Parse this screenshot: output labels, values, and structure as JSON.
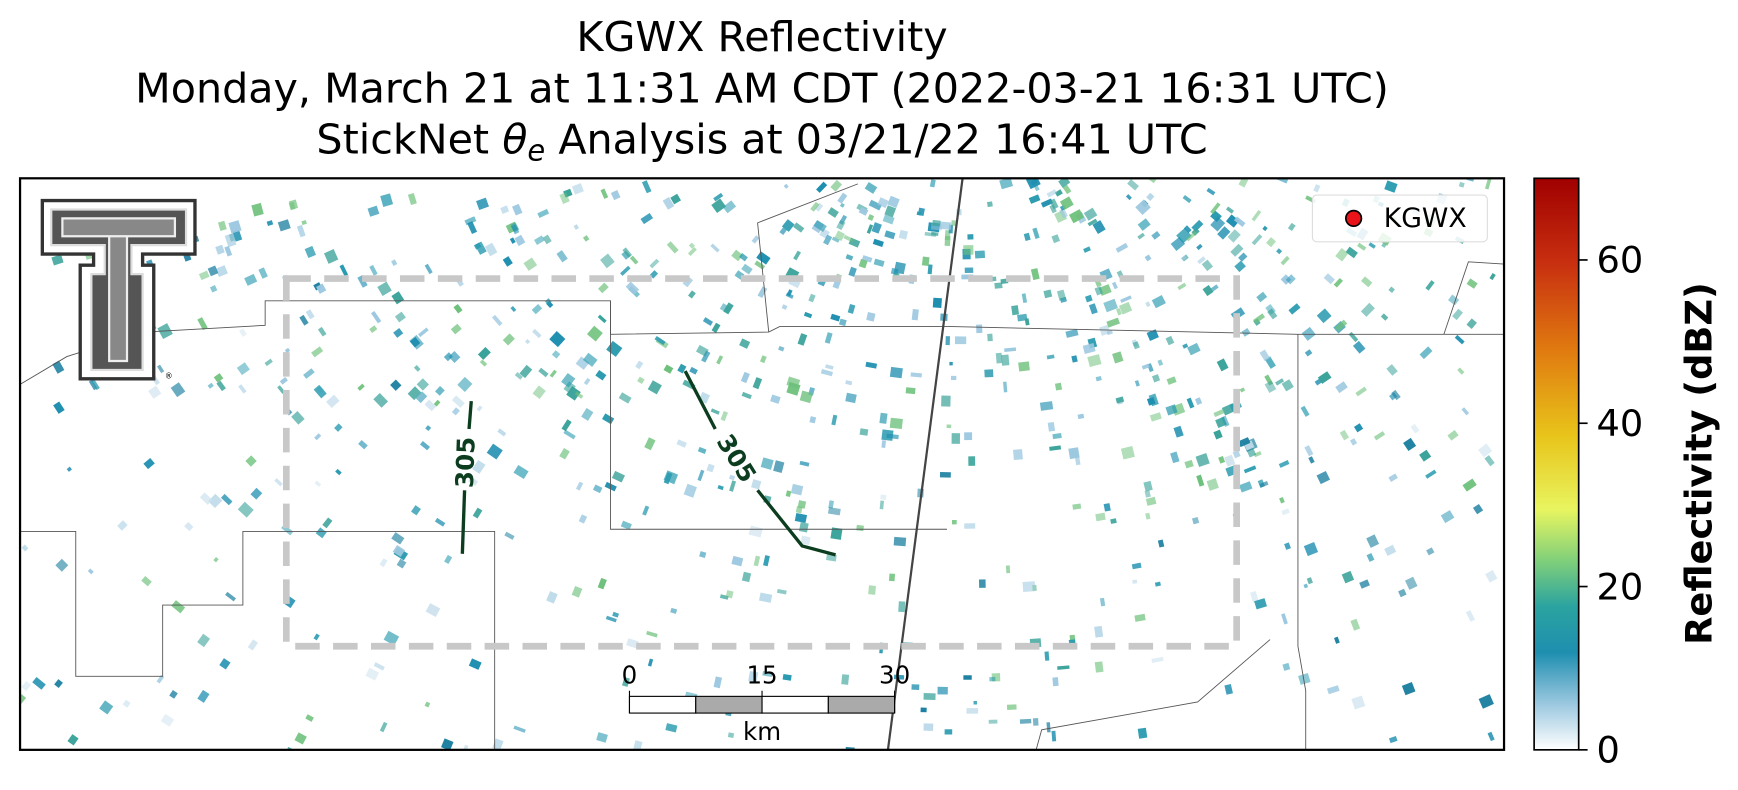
{
  "title_lines": [
    "KGWX Reflectivity",
    "Monday, March 21 at 11:31 AM CDT (2022-03-21 16:31 UTC)"
  ],
  "analysis_line": {
    "before": "StickNet ",
    "symbol": "θ",
    "subscript": "e",
    "after": " Analysis at 03/21/22 16:41 UTC"
  },
  "legend": {
    "label": "KGWX",
    "color": "#e8141a"
  },
  "contour_labels": [
    "305",
    "305"
  ],
  "scale_bar": {
    "ticks": [
      0,
      15,
      30
    ],
    "lim": [
      0,
      30
    ],
    "unit": "km"
  },
  "colorbar": {
    "label": "Reflectivity (dBZ)",
    "lim": [
      0,
      70
    ],
    "ticks": [
      0,
      20,
      40,
      60
    ]
  }
}
